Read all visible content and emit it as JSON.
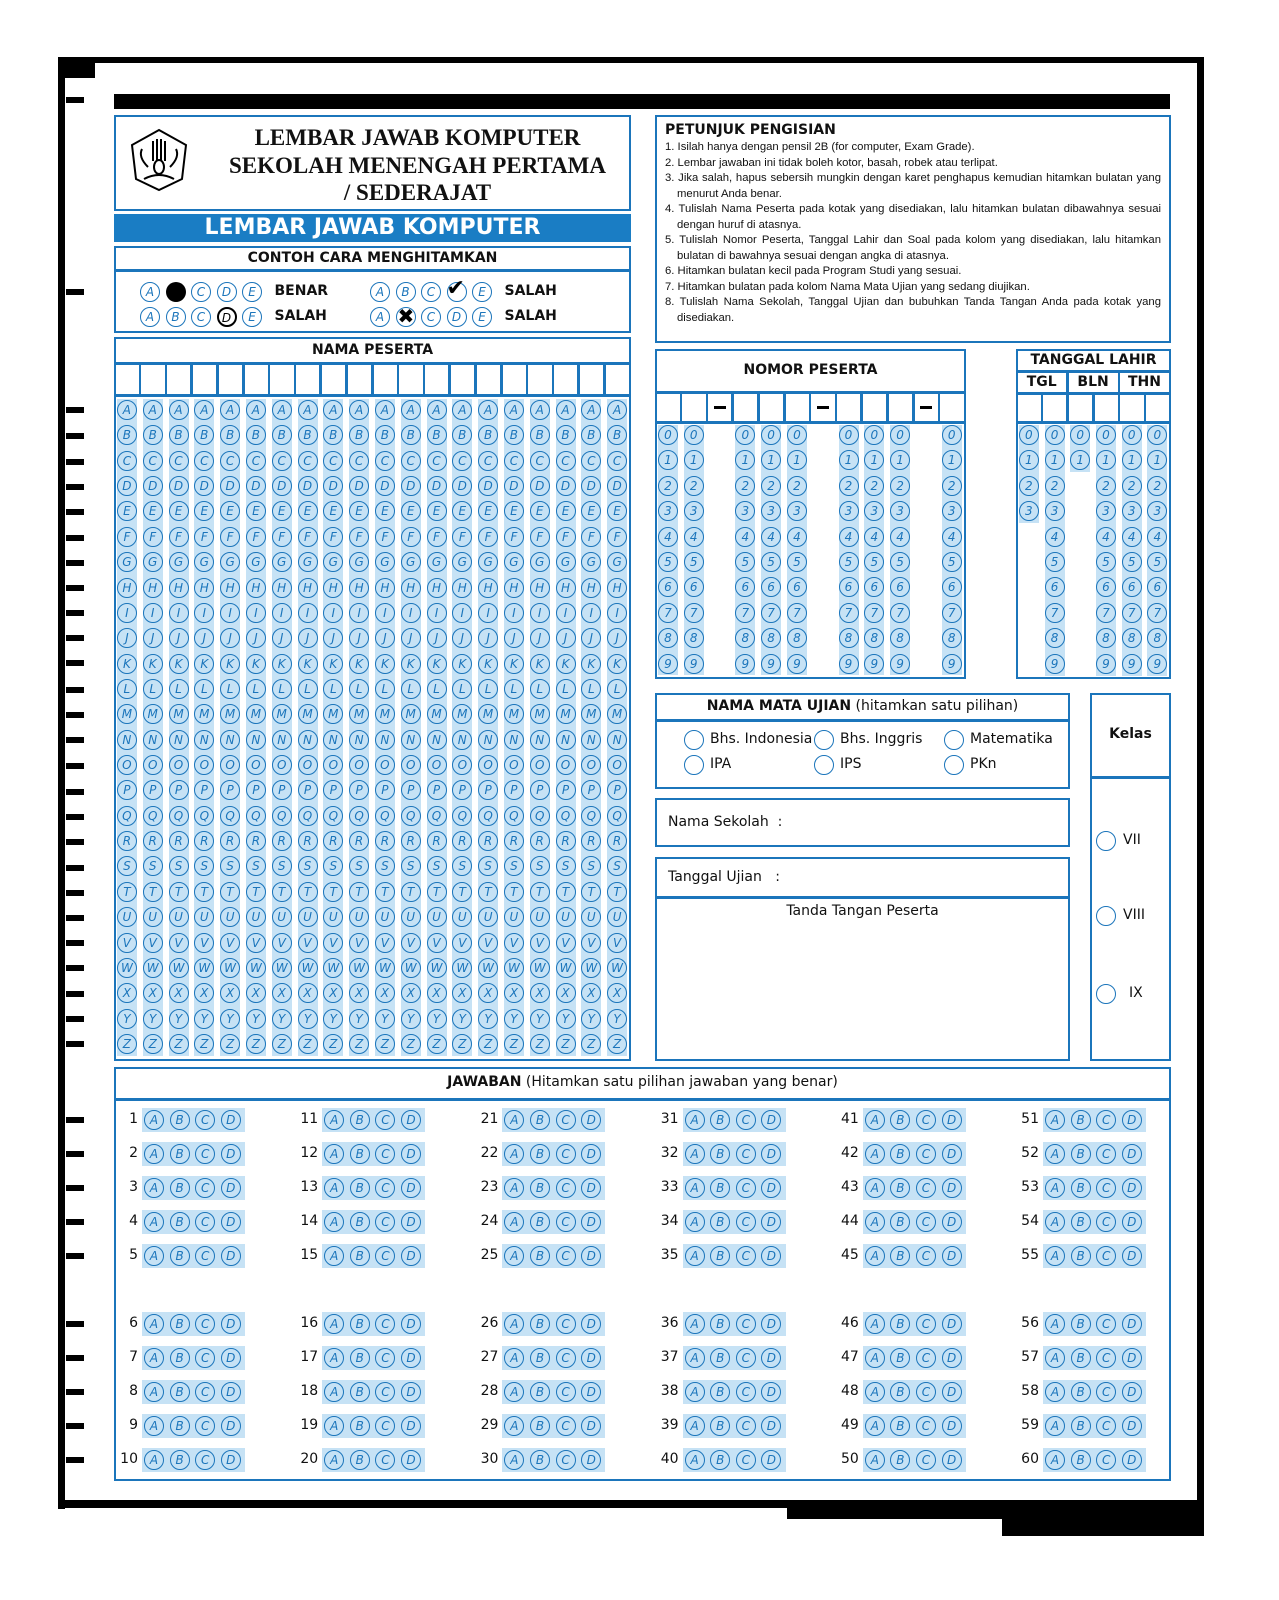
{
  "colors": {
    "accent": "#1b75bb",
    "fill": "#c6e2f5",
    "banner": "#1a7dc4"
  },
  "header": {
    "line1": "LEMBAR JAWAB KOMPUTER",
    "line2": "SEKOLAH MENENGAH PERTAMA",
    "line3": "/ SEDERAJAT",
    "logo_text": "TUT WURI HANDAYANI"
  },
  "banner": "LEMBAR JAWAB KOMPUTER",
  "contoh": {
    "title": "CONTOH CARA MENGHITAMKAN",
    "examples": [
      {
        "bubbles": [
          "A",
          "filled",
          "C",
          "D",
          "E"
        ],
        "verdict": "BENAR"
      },
      {
        "bubbles": [
          "A",
          "B",
          "C",
          "check",
          "E"
        ],
        "verdict": "SALAH"
      },
      {
        "bubbles": [
          "A",
          "B",
          "C",
          "D-bold",
          "E"
        ],
        "verdict": "SALAH"
      },
      {
        "bubbles": [
          "A",
          "cross",
          "C",
          "D",
          "E"
        ],
        "verdict": "SALAH"
      }
    ]
  },
  "nama_peserta": {
    "title": "NAMA PESERTA",
    "letters": [
      "A",
      "B",
      "C",
      "D",
      "E",
      "F",
      "G",
      "H",
      "I",
      "J",
      "K",
      "L",
      "M",
      "N",
      "O",
      "P",
      "Q",
      "R",
      "S",
      "T",
      "U",
      "V",
      "W",
      "X",
      "Y",
      "Z"
    ]
  },
  "petunjuk": {
    "title": "PETUNJUK PENGISIAN",
    "items": [
      "1. Isilah hanya dengan pensil 2B (for computer, Exam Grade).",
      "2. Lembar jawaban ini tidak boleh kotor, basah, robek atau terlipat.",
      "3. Jika salah, hapus sebersih mungkin dengan karet penghapus kemudian hitamkan bulatan yang menurut Anda benar.",
      "4. Tulislah Nama Peserta pada kotak yang disediakan, lalu hitamkan bulatan dibawahnya sesuai dengan huruf di atasnya.",
      "5. Tulislah Nomor Peserta, Tanggal Lahir dan Soal pada kolom yang disediakan, lalu hitamkan bulatan di bawahnya sesuai dengan angka di atasnya.",
      "6. Hitamkan bulatan kecil pada Program Studi yang sesuai.",
      "7. Hitamkan bulatan pada kolom Nama Mata Ujian yang sedang diujikan.",
      "8. Tulislah Nama Sekolah, Tanggal Ujian dan bubuhkan Tanda Tangan Anda pada kotak yang disediakan."
    ]
  },
  "nomor_peserta": {
    "title": "NOMOR PESERTA",
    "separator": "–",
    "digits": [
      "0",
      "1",
      "2",
      "3",
      "4",
      "5",
      "6",
      "7",
      "8",
      "9"
    ]
  },
  "tanggal_lahir": {
    "title": "TANGGAL LAHIR",
    "groups": [
      "TGL",
      "BLN",
      "THN"
    ],
    "column_max_digit": [
      3,
      9,
      1,
      9,
      9,
      9
    ]
  },
  "mata_ujian": {
    "title_bold": "NAMA MATA UJIAN",
    "title_rest": "(hitamkan satu pilihan)",
    "options": [
      "Bhs. Indonesia",
      "Bhs. Inggris",
      "Matematika",
      "IPA",
      "IPS",
      "PKn"
    ]
  },
  "nama_sekolah": "Nama Sekolah  :",
  "tanggal_ujian": "Tanggal Ujian   :",
  "tanda_tangan": "Tanda Tangan Peserta",
  "kelas": {
    "title": "Kelas",
    "options": [
      "VII",
      "VIII",
      "IX"
    ]
  },
  "jawaban": {
    "title_bold": "JAWABAN",
    "title_rest": "(Hitamkan satu pilihan jawaban yang benar)",
    "options": [
      "A",
      "B",
      "C",
      "D"
    ],
    "questions": [
      1,
      2,
      3,
      4,
      5,
      6,
      7,
      8,
      9,
      10,
      11,
      12,
      13,
      14,
      15,
      16,
      17,
      18,
      19,
      20,
      21,
      22,
      23,
      24,
      25,
      26,
      27,
      28,
      29,
      30,
      31,
      32,
      33,
      34,
      35,
      36,
      37,
      38,
      39,
      40,
      41,
      42,
      43,
      44,
      45,
      46,
      47,
      48,
      49,
      50,
      51,
      52,
      53,
      54,
      55,
      56,
      57,
      58,
      59,
      60
    ]
  }
}
